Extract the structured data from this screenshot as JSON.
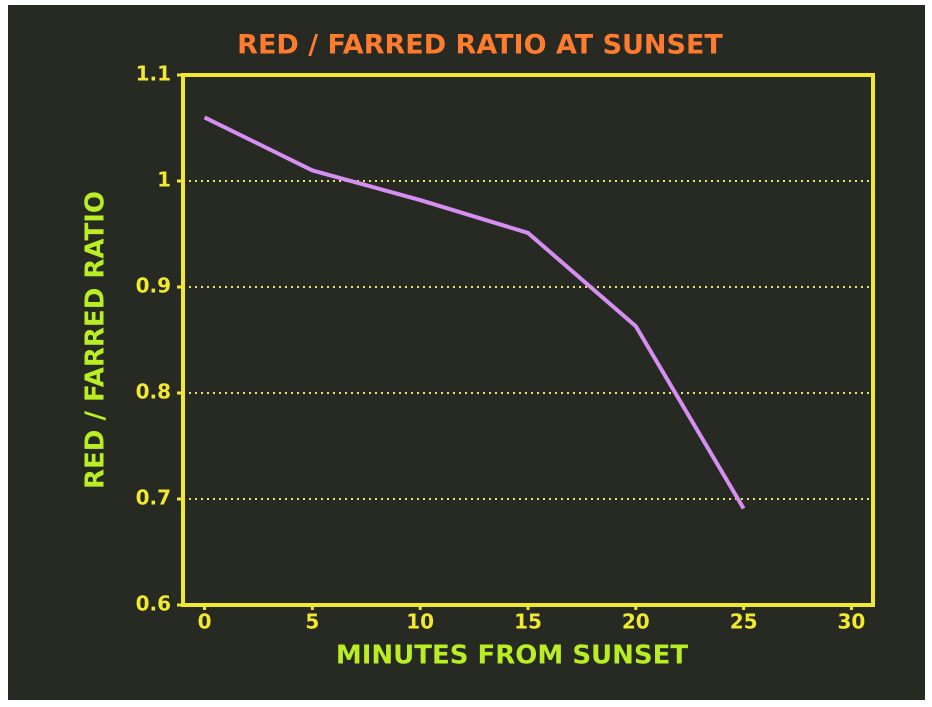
{
  "chart_data": {
    "type": "line",
    "title": "RED / FARRED RATIO AT SUNSET",
    "x_label": "MINUTES FROM SUNSET",
    "y_label": "RED / FARRED RATIO",
    "x": [
      0,
      5,
      10,
      15,
      20,
      25
    ],
    "series": [
      {
        "name": "Red / Farred ratio",
        "color": "#d68ef2",
        "values": [
          1.06,
          1.01,
          0.982,
          0.951,
          0.863,
          0.691
        ]
      }
    ],
    "xlim": [
      -1,
      31
    ],
    "xticks": [
      0,
      5,
      10,
      15,
      20,
      25,
      30
    ],
    "ylim": [
      0.6,
      1.1
    ],
    "yticks": [
      0.6,
      0.7,
      0.8,
      0.9,
      1,
      1.1
    ],
    "grid": true
  }
}
